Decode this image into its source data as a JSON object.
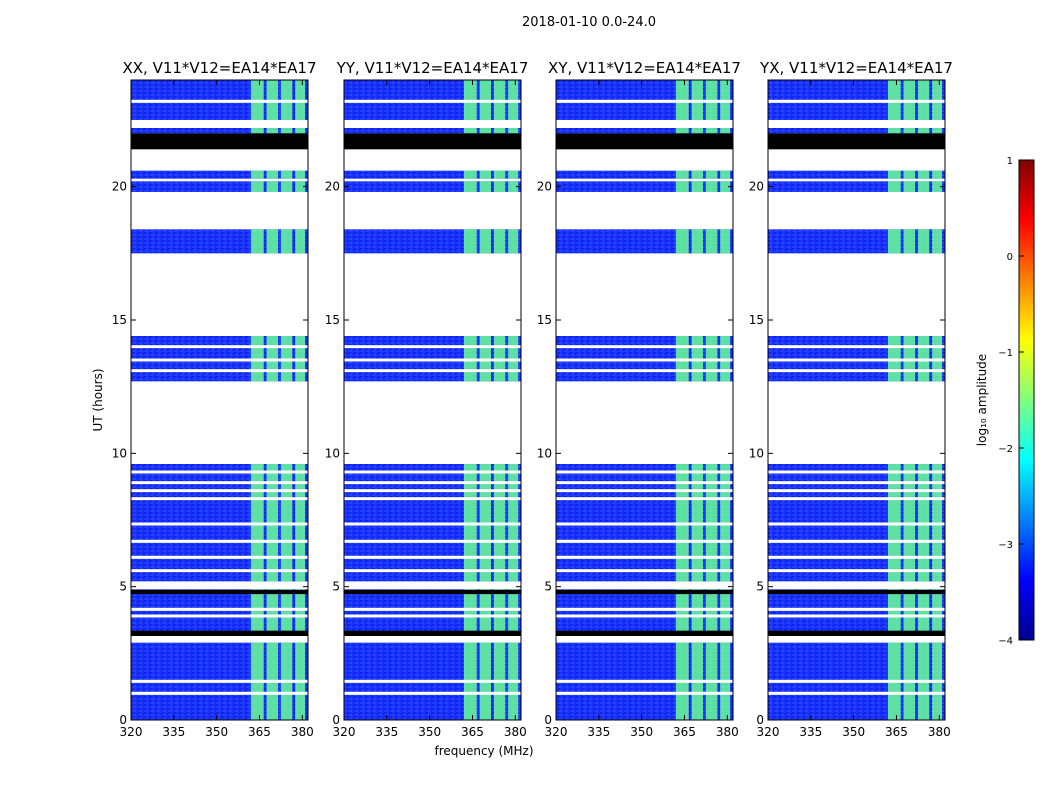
{
  "figure_title": "2018-01-10 0.0-24.0",
  "chart_data": {
    "type": "heatmap",
    "title": "2018-01-10 0.0-24.0",
    "xlabel": "frequency (MHz)",
    "ylabel": "UT (hours)",
    "xlim": [
      320,
      382
    ],
    "ylim": [
      0,
      24
    ],
    "xticks": [
      "320",
      "335",
      "350",
      "365",
      "380"
    ],
    "yticks": [
      "0",
      "5",
      "10",
      "15",
      "20"
    ],
    "panels": [
      {
        "title": "XX, V11*V12=EA14*EA17",
        "show_ylabel": true,
        "show_xlabel": false
      },
      {
        "title": "YY, V11*V12=EA14*EA17",
        "show_ylabel": false,
        "show_xlabel": true
      },
      {
        "title": "XY, V11*V12=EA14*EA17",
        "show_ylabel": false,
        "show_xlabel": false
      },
      {
        "title": "YX, V11*V12=EA14*EA17",
        "show_ylabel": false,
        "show_xlabel": false
      }
    ],
    "data_blocks_ut": [
      [
        0.0,
        2.9
      ],
      [
        3.15,
        4.9
      ],
      [
        5.2,
        9.6
      ],
      [
        12.7,
        14.4
      ],
      [
        17.5,
        18.4
      ],
      [
        19.8,
        20.2
      ],
      [
        20.3,
        20.6
      ],
      [
        22.0,
        22.2
      ],
      [
        22.5,
        24.0
      ]
    ],
    "flagged_black_ut": [
      [
        21.4,
        22.0
      ],
      [
        4.72,
        4.88
      ],
      [
        3.15,
        3.35
      ]
    ],
    "white_gap_lines_ut": [
      1.0,
      1.45,
      7.35,
      6.7,
      6.1,
      5.6,
      8.3,
      8.6,
      8.9,
      9.3,
      4.15,
      3.9,
      13.1,
      13.5,
      14.0,
      23.2
    ],
    "rfi_channels_mhz": [
      [
        362,
        366.5
      ],
      [
        367.5,
        371.5
      ],
      [
        372.5,
        376.5
      ],
      [
        377.5,
        381
      ]
    ],
    "background_log_amplitude": -3.4,
    "rfi_log_amplitude": -1.6,
    "colorbar": {
      "label": "log₁₀ amplitude",
      "ticks": [
        "1",
        "0",
        "−1",
        "−2",
        "−3",
        "−4"
      ],
      "range": [
        -4,
        1
      ],
      "colormap": "jet"
    }
  }
}
